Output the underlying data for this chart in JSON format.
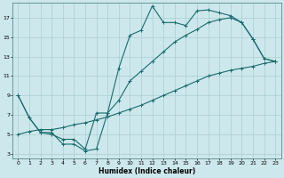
{
  "title": "",
  "xlabel": "Humidex (Indice chaleur)",
  "background_color": "#cce8ec",
  "grid_color": "#aacdd4",
  "line_color": "#1a6b6b",
  "xlim": [
    -0.5,
    23.5
  ],
  "ylim": [
    2.5,
    18.5
  ],
  "xticks": [
    0,
    1,
    2,
    3,
    4,
    5,
    6,
    7,
    8,
    9,
    10,
    11,
    12,
    13,
    14,
    15,
    16,
    17,
    18,
    19,
    20,
    21,
    22,
    23
  ],
  "yticks": [
    3,
    5,
    7,
    9,
    11,
    13,
    15,
    17
  ],
  "line1_x": [
    0,
    1,
    2,
    3,
    4,
    5,
    6,
    7,
    8,
    9,
    10,
    11,
    12,
    13,
    14,
    15,
    16,
    17,
    18,
    19,
    20,
    21,
    22,
    23
  ],
  "line1_y": [
    9.0,
    6.7,
    5.2,
    5.2,
    4.0,
    4.0,
    3.3,
    3.5,
    7.2,
    11.8,
    15.2,
    15.7,
    18.2,
    16.5,
    16.5,
    16.2,
    17.7,
    17.8,
    17.5,
    17.2,
    16.5,
    14.8,
    12.8,
    12.5
  ],
  "line2_x": [
    0,
    1,
    2,
    3,
    4,
    5,
    6,
    7,
    8,
    9,
    10,
    11,
    12,
    13,
    14,
    15,
    16,
    17,
    18,
    19,
    20,
    21,
    22,
    23
  ],
  "line2_y": [
    9.0,
    6.7,
    5.2,
    5.0,
    4.5,
    4.5,
    3.5,
    7.2,
    7.2,
    8.5,
    10.5,
    11.5,
    12.5,
    13.5,
    14.5,
    15.2,
    15.8,
    16.5,
    16.8,
    17.0,
    16.5,
    14.8,
    12.8,
    12.5
  ],
  "line3_x": [
    0,
    1,
    2,
    3,
    4,
    5,
    6,
    7,
    8,
    9,
    10,
    11,
    12,
    13,
    14,
    15,
    16,
    17,
    18,
    19,
    20,
    21,
    22,
    23
  ],
  "line3_y": [
    5.0,
    5.3,
    5.5,
    5.5,
    5.7,
    6.0,
    6.2,
    6.5,
    6.8,
    7.2,
    7.6,
    8.0,
    8.5,
    9.0,
    9.5,
    10.0,
    10.5,
    11.0,
    11.3,
    11.6,
    11.8,
    12.0,
    12.3,
    12.5
  ],
  "marker": "+",
  "markersize": 3,
  "linewidth": 0.8
}
